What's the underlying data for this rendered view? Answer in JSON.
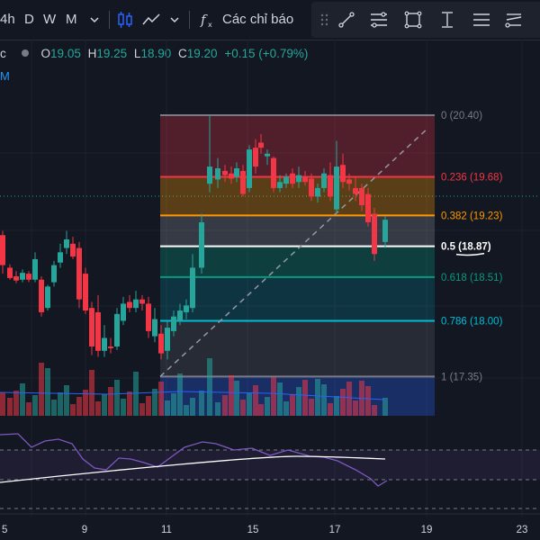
{
  "toolbar": {
    "intervals": [
      "4h",
      "D",
      "W",
      "M"
    ],
    "indicators_label": "Các chỉ báo"
  },
  "ohlc": {
    "open_label": "O",
    "open": "19.05",
    "high_label": "H",
    "high": "19.25",
    "low_label": "L",
    "low": "18.90",
    "close_label": "C",
    "close": "19.20",
    "change": "+0.15 (+0.79%)"
  },
  "legend_fragment": "M",
  "fib_levels": [
    {
      "ratio": "0",
      "price": "20.40",
      "color": "#787b86",
      "text": "0 (20.40)"
    },
    {
      "ratio": "0.236",
      "price": "19.68",
      "color": "#f23645",
      "text": "0.236 (19.68)"
    },
    {
      "ratio": "0.382",
      "price": "19.23",
      "color": "#ff9800",
      "text": "0.382 (19.23)"
    },
    {
      "ratio": "0.5",
      "price": "18.87",
      "color": "#ffffff",
      "text": "0.5 (18.87)"
    },
    {
      "ratio": "0.618",
      "price": "18.51",
      "color": "#089981",
      "text": "0.618 (18.51)"
    },
    {
      "ratio": "0.786",
      "price": "18.00",
      "color": "#00bcd4",
      "text": "0.786 (18.00)"
    },
    {
      "ratio": "1",
      "price": "17.35",
      "color": "#787b86",
      "text": "1 (17.35)"
    }
  ],
  "date_axis": [
    "5",
    "9",
    "11",
    "15",
    "17",
    "19",
    "23"
  ],
  "colors": {
    "up": "#26a69a",
    "down": "#f23645",
    "background": "#131722"
  }
}
